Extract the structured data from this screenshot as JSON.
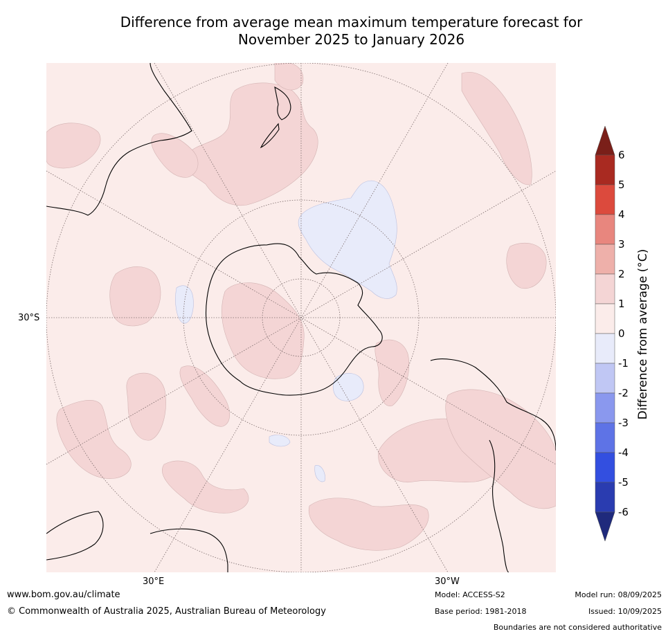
{
  "header": {
    "title_line1": "Difference from average mean maximum temperature forecast for",
    "title_line2": "November 2025 to January 2026"
  },
  "map": {
    "projection": "south-polar stereographic",
    "lat_label_30s": "30°S",
    "lon_label_30e": "30°E",
    "lon_label_30w": "30°W",
    "colors": {
      "background_0_to_1": "#fbecea",
      "band_1_to_2": "#f4d5d5",
      "band_0_to_minus1": "#e8ebfa",
      "land_outline": "#000000",
      "graticule": "#7a6a6a"
    }
  },
  "colorbar": {
    "title": "Difference from average ($^\\circ$C)",
    "title_display": "Difference from average (°C)",
    "ticks": [
      "6",
      "5",
      "4",
      "3",
      "2",
      "1",
      "0",
      "-1",
      "-2",
      "-3",
      "-4",
      "-5",
      "-6"
    ],
    "bands": [
      {
        "range": ">6",
        "color": "#7a1f19"
      },
      {
        "range": "5 to 6",
        "color": "#a92a21"
      },
      {
        "range": "4 to 5",
        "color": "#dc4a3d"
      },
      {
        "range": "3 to 4",
        "color": "#e8867e"
      },
      {
        "range": "2 to 3",
        "color": "#eeb0aa"
      },
      {
        "range": "1 to 2",
        "color": "#f4d5d5"
      },
      {
        "range": "0 to 1",
        "color": "#fbecea"
      },
      {
        "range": "0 to -1",
        "color": "#e8ebfa"
      },
      {
        "range": "-1 to -2",
        "color": "#c0c7f4"
      },
      {
        "range": "-2 to -3",
        "color": "#8a98ee"
      },
      {
        "range": "-3 to -4",
        "color": "#5e73e6"
      },
      {
        "range": "-4 to -5",
        "color": "#334fe0"
      },
      {
        "range": "-5 to -6",
        "color": "#2a3cb0"
      },
      {
        "range": "<-6",
        "color": "#1f2a7c"
      }
    ]
  },
  "footer": {
    "website": "www.bom.gov.au/climate",
    "copyright": "© Commonwealth of Australia 2025, Australian Bureau of Meteorology",
    "model": "Model: ACCESS-S2",
    "base_period": "Base period: 1981-2018",
    "model_run": "Model run: 08/09/2025",
    "issued": "Issued: 10/09/2025",
    "disclaimer": "Boundaries are not considered authoritative"
  }
}
